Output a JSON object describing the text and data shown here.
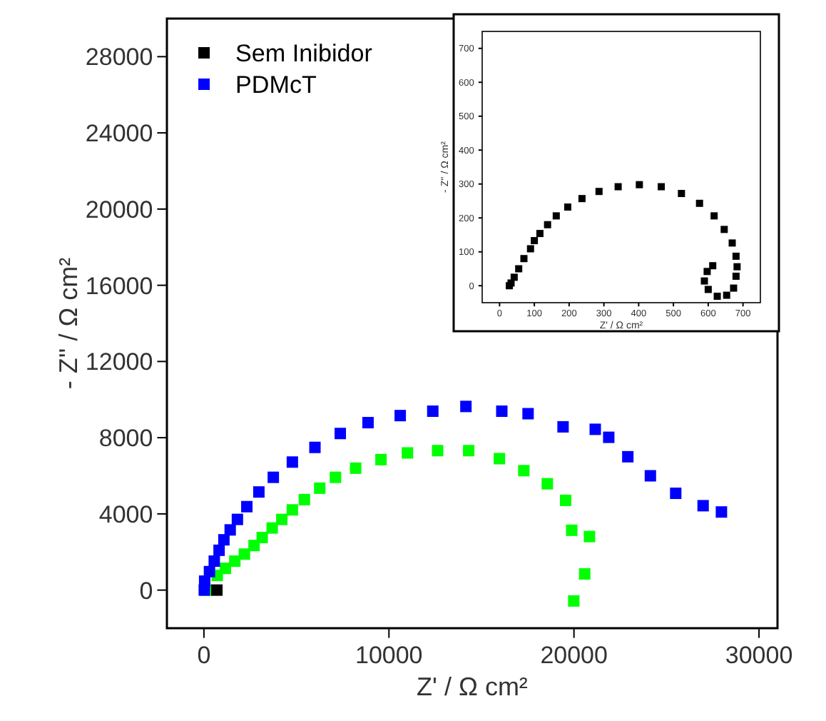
{
  "chart_data": [
    {
      "type": "scatter",
      "xlabel": "Z' / Ω cm²",
      "ylabel": "- Z'' / Ω cm²",
      "xlim": [
        -2000,
        31000
      ],
      "ylim": [
        -2000,
        30000
      ],
      "xticks": [
        0,
        10000,
        20000,
        30000
      ],
      "yticks": [
        0,
        4000,
        8000,
        12000,
        16000,
        20000,
        24000,
        28000
      ],
      "marker": "square",
      "legend": "top left",
      "grid": false,
      "series": [
        {
          "name": "Sem Inibidor",
          "color": "#000000",
          "x": [
            700
          ],
          "values": [
            0
          ]
        },
        {
          "name": "PDMcT",
          "color": "#0000ff",
          "x": [
            20,
            40,
            300,
            560,
            820,
            1080,
            1420,
            1810,
            2320,
            2970,
            3750,
            4780,
            6000,
            7370,
            8870,
            10610,
            12370,
            14160,
            16100,
            17520,
            19410,
            21150,
            21880,
            22910,
            24130,
            25500,
            26980,
            27970
          ],
          "values": [
            0,
            470,
            970,
            1520,
            2090,
            2640,
            3160,
            3710,
            4380,
            5150,
            5920,
            6720,
            7490,
            8220,
            8790,
            9160,
            9390,
            9640,
            9390,
            9260,
            8570,
            8440,
            8020,
            7000,
            6000,
            5080,
            4430,
            4100
          ]
        },
        {
          "color": "#00ff00",
          "x": [
            100,
            720,
            1160,
            1670,
            2190,
            2710,
            3150,
            3690,
            4210,
            4780,
            5430,
            6260,
            7110,
            8200,
            9570,
            11000,
            12630,
            14310,
            15970,
            17290,
            18560,
            19550,
            19880,
            20840,
            20580,
            19990
          ],
          "values": [
            0,
            770,
            1140,
            1520,
            1890,
            2340,
            2760,
            3260,
            3710,
            4210,
            4750,
            5350,
            5920,
            6400,
            6850,
            7200,
            7320,
            7320,
            6900,
            6270,
            5580,
            4710,
            3140,
            2810,
            850,
            -570
          ]
        }
      ]
    },
    {
      "type": "scatter",
      "xlabel": "Z' / Ω cm²",
      "ylabel": "- Z'' / Ω cm²",
      "xlim": [
        -50,
        750
      ],
      "ylim": [
        -50,
        750
      ],
      "xticks": [
        0,
        100,
        200,
        300,
        400,
        500,
        600,
        700
      ],
      "yticks": [
        0,
        100,
        200,
        300,
        400,
        500,
        600,
        700
      ],
      "marker": "square",
      "grid": false,
      "series": [
        {
          "color": "#000000",
          "x": [
            28,
            33,
            42,
            55,
            70,
            89,
            100,
            116,
            138,
            163,
            196,
            237,
            286,
            341,
            402,
            465,
            523,
            575,
            617,
            646,
            669,
            680,
            683,
            680,
            673,
            653,
            626,
            600,
            589,
            597,
            613
          ],
          "values": [
            0,
            8,
            25,
            50,
            80,
            109,
            133,
            154,
            180,
            206,
            232,
            257,
            278,
            292,
            298,
            292,
            272,
            243,
            206,
            166,
            126,
            87,
            56,
            28,
            -7,
            -28,
            -31,
            -11,
            14,
            42,
            59
          ]
        }
      ]
    }
  ]
}
